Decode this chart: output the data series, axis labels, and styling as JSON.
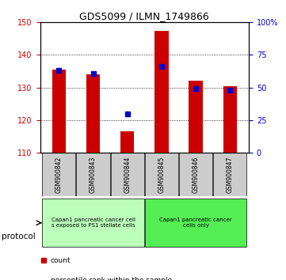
{
  "title": "GDS5099 / ILMN_1749866",
  "samples": [
    "GSM900842",
    "GSM900843",
    "GSM900844",
    "GSM900845",
    "GSM900846",
    "GSM900847"
  ],
  "counts": [
    135.5,
    134.0,
    116.5,
    147.5,
    132.0,
    130.5
  ],
  "percentile_ranks": [
    63,
    61,
    30,
    66,
    49,
    48
  ],
  "ylim_left": [
    110,
    150
  ],
  "ylim_right": [
    0,
    100
  ],
  "yticks_left": [
    110,
    120,
    130,
    140,
    150
  ],
  "yticks_right": [
    0,
    25,
    50,
    75,
    100
  ],
  "ytick_labels_right": [
    "0",
    "25",
    "50",
    "75",
    "100%"
  ],
  "bar_color": "#cc0000",
  "dot_color": "#0000cc",
  "bar_bottom": 110,
  "group1_label": "Capan1 pancreatic cancer cell\ns exposed to PS1 stellate cells",
  "group1_color": "#bbffbb",
  "group2_label": "Capan1 pancreatic cancer\ncells only",
  "group2_color": "#55ee55",
  "legend_count_color": "#cc0000",
  "legend_pct_color": "#0000cc",
  "protocol_text": "protocol",
  "bg_color": "#ffffff",
  "tick_label_color_left": "#cc0000",
  "tick_label_color_right": "#0000cc",
  "bar_width": 0.4,
  "sample_label_bg": "#cccccc"
}
